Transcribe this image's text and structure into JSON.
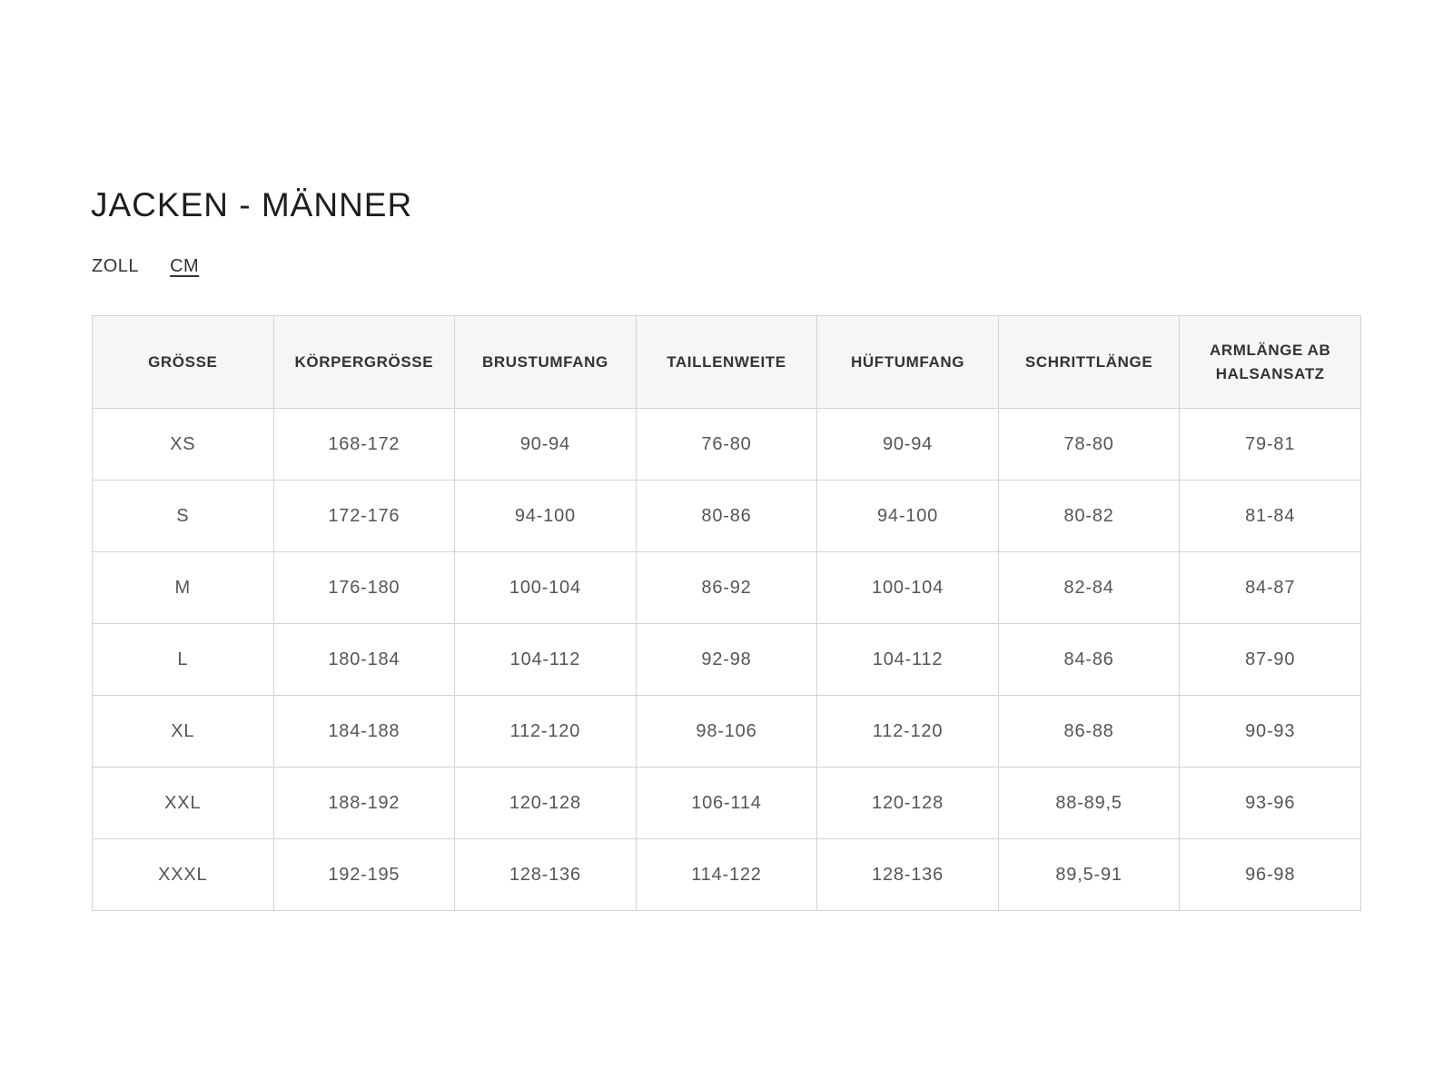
{
  "title": "JACKEN - MÄNNER",
  "units": [
    {
      "label": "ZOLL",
      "active": false
    },
    {
      "label": "CM",
      "active": true
    }
  ],
  "table": {
    "headers": [
      "GRÖSSE",
      "KÖRPERGRÖSSE",
      "BRUSTUMFANG",
      "TAILLENWEITE",
      "HÜFTUMFANG",
      "SCHRITTLÄNGE",
      "ARMLÄNGE AB HALSANSATZ"
    ],
    "rows": [
      [
        "XS",
        "168-172",
        "90-94",
        "76-80",
        "90-94",
        "78-80",
        "79-81"
      ],
      [
        "S",
        "172-176",
        "94-100",
        "80-86",
        "94-100",
        "80-82",
        "81-84"
      ],
      [
        "M",
        "176-180",
        "100-104",
        "86-92",
        "100-104",
        "82-84",
        "84-87"
      ],
      [
        "L",
        "180-184",
        "104-112",
        "92-98",
        "104-112",
        "84-86",
        "87-90"
      ],
      [
        "XL",
        "184-188",
        "112-120",
        "98-106",
        "112-120",
        "86-88",
        "90-93"
      ],
      [
        "XXL",
        "188-192",
        "120-128",
        "106-114",
        "120-128",
        "88-89,5",
        "93-96"
      ],
      [
        "XXXL",
        "192-195",
        "128-136",
        "114-122",
        "128-136",
        "89,5-91",
        "96-98"
      ]
    ]
  }
}
